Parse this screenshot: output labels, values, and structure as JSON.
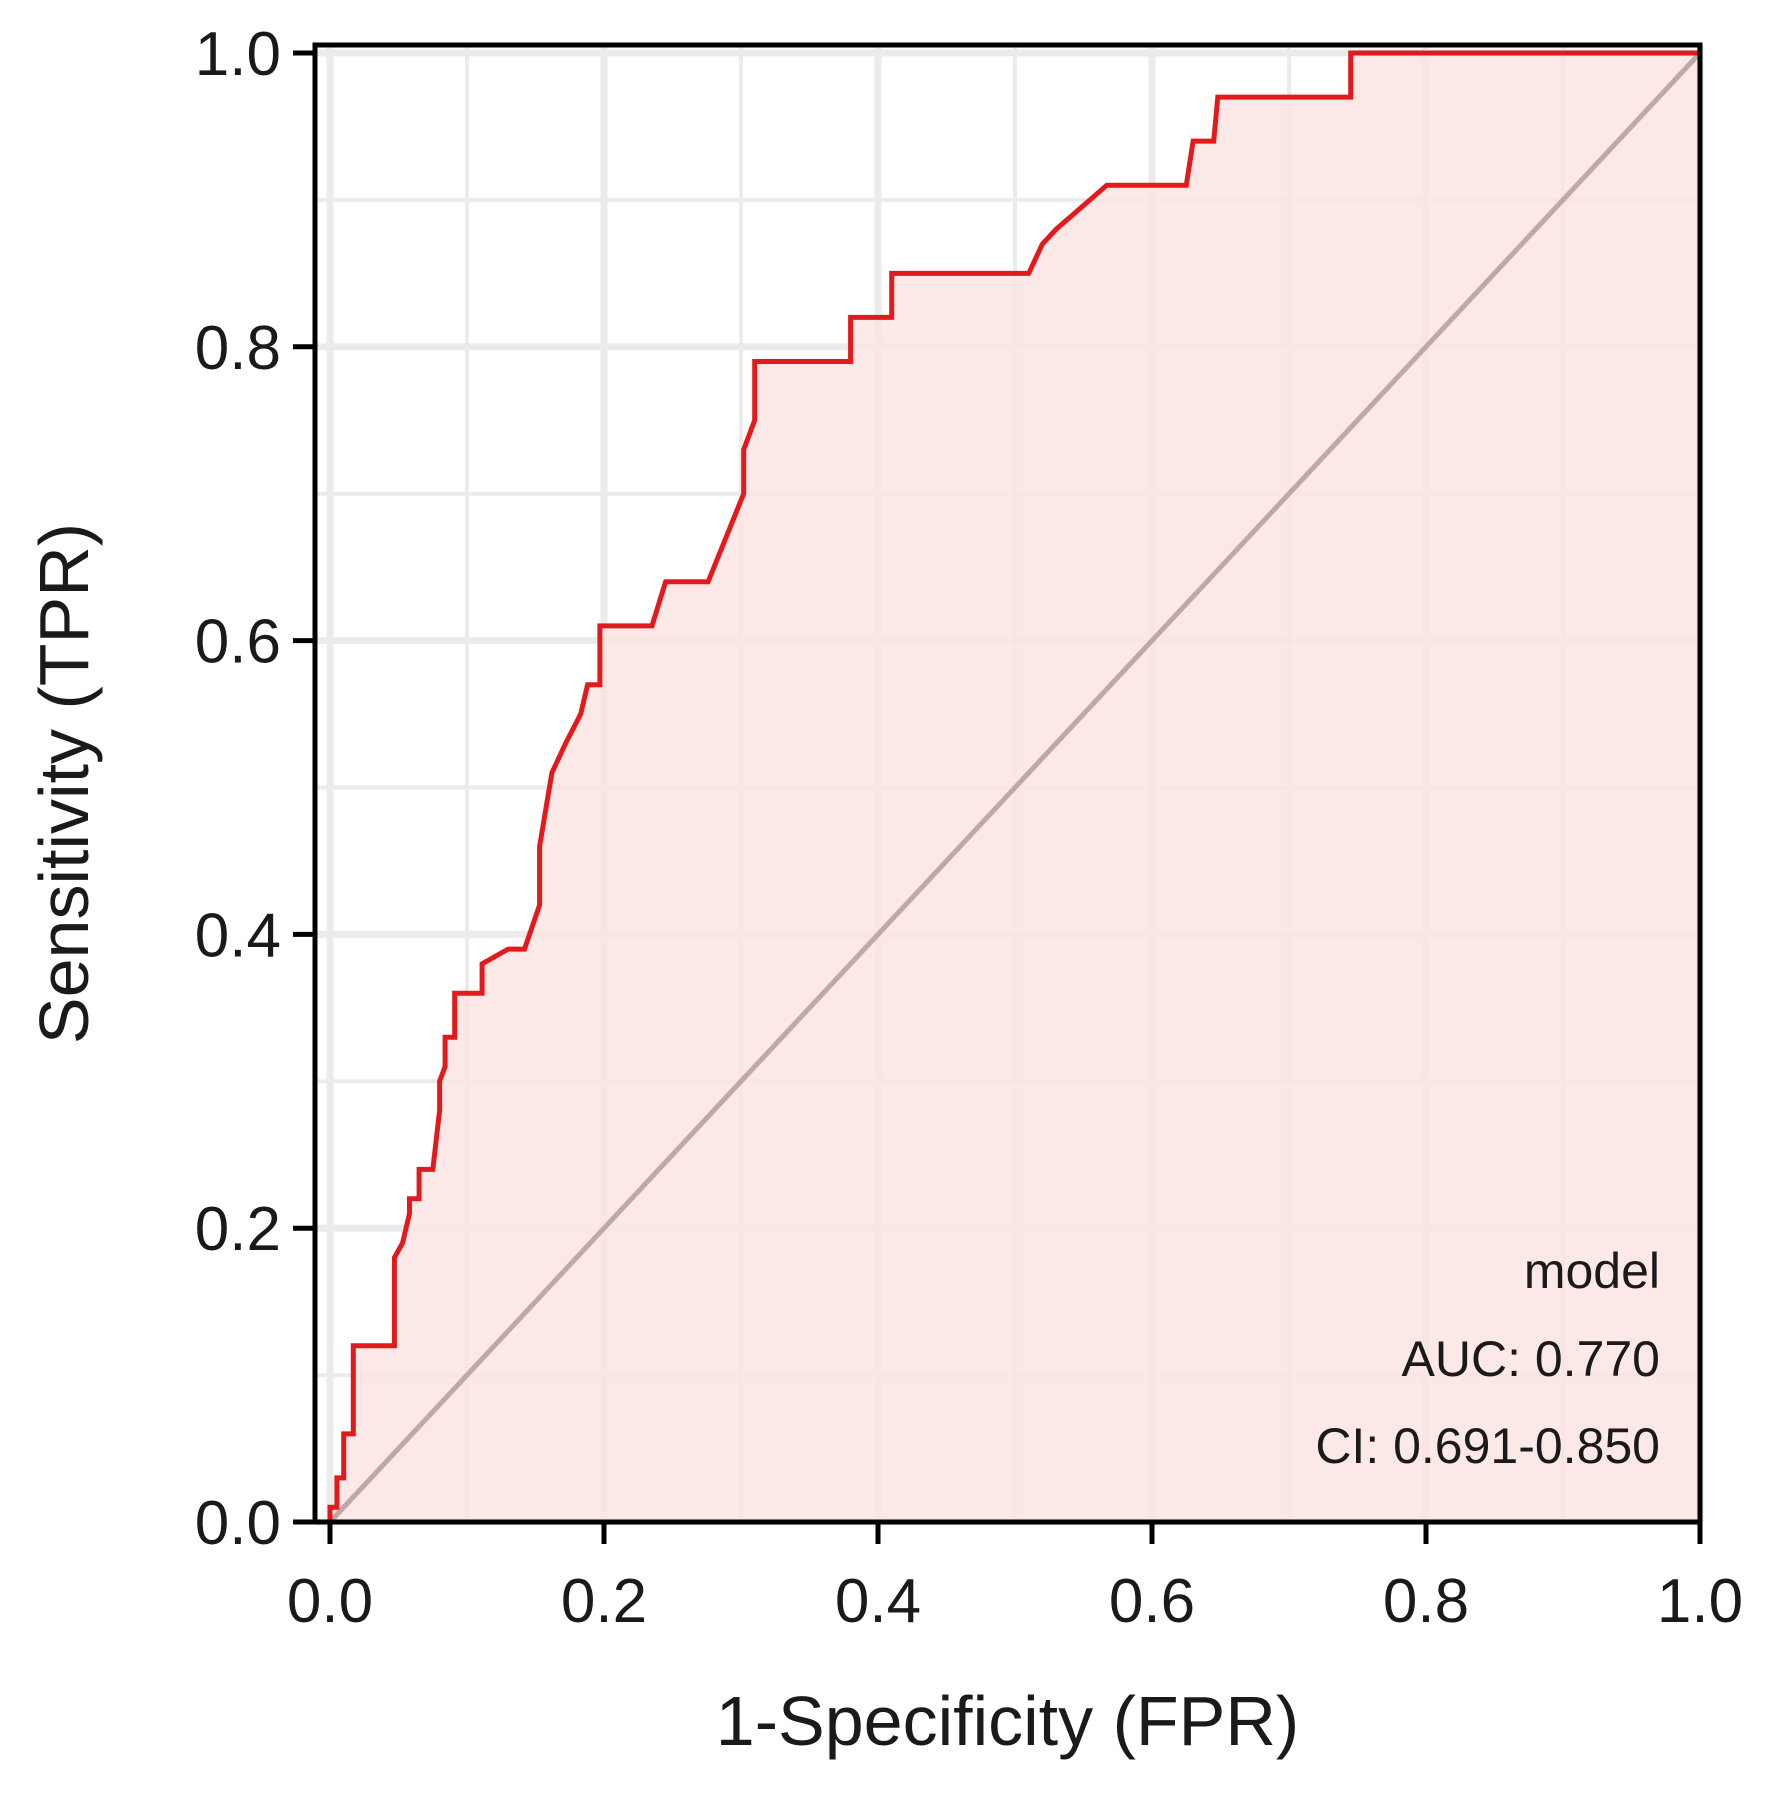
{
  "chart_data": {
    "type": "line",
    "xlabel": "1-Specificity (FPR)",
    "ylabel": "Sensitivity (TPR)",
    "xlim": [
      0,
      1
    ],
    "ylim": [
      0,
      1
    ],
    "x_ticks": [
      "0.0",
      "0.2",
      "0.4",
      "0.6",
      "0.8",
      "1.0"
    ],
    "y_ticks": [
      "0.0",
      "0.2",
      "0.4",
      "0.6",
      "0.8",
      "1.0"
    ],
    "grid": true,
    "legend_position": "bottom-right",
    "annotation": {
      "name": "model",
      "auc": "AUC: 0.770",
      "ci": "CI: 0.691-0.850"
    },
    "colors": {
      "roc_line": "#e31a1c",
      "roc_fill": "#fde4e4",
      "diagonal": "#c0a8a8",
      "grid": "#ebebeb",
      "frame": "#000000"
    },
    "series": [
      {
        "x": [
          0.0,
          0.0,
          0.005,
          0.005,
          0.01,
          0.01,
          0.017,
          0.017,
          0.047,
          0.047,
          0.053,
          0.058,
          0.058,
          0.065,
          0.065,
          0.075,
          0.08,
          0.08,
          0.084,
          0.084,
          0.091,
          0.091,
          0.111,
          0.111,
          0.13,
          0.142,
          0.153,
          0.153,
          0.162,
          0.172,
          0.183,
          0.188,
          0.197,
          0.197,
          0.208,
          0.235,
          0.245,
          0.276,
          0.302,
          0.302,
          0.31,
          0.31,
          0.38,
          0.38,
          0.41,
          0.41,
          0.51,
          0.52,
          0.53,
          0.567,
          0.6,
          0.625,
          0.63,
          0.645,
          0.648,
          0.675,
          0.745,
          0.745,
          1.0
        ],
        "y": [
          0.0,
          0.01,
          0.01,
          0.03,
          0.03,
          0.06,
          0.06,
          0.12,
          0.12,
          0.18,
          0.19,
          0.21,
          0.22,
          0.22,
          0.24,
          0.24,
          0.28,
          0.3,
          0.31,
          0.33,
          0.33,
          0.36,
          0.36,
          0.38,
          0.39,
          0.39,
          0.42,
          0.46,
          0.51,
          0.53,
          0.55,
          0.57,
          0.57,
          0.61,
          0.61,
          0.61,
          0.64,
          0.64,
          0.7,
          0.73,
          0.75,
          0.79,
          0.79,
          0.82,
          0.82,
          0.85,
          0.85,
          0.87,
          0.88,
          0.91,
          0.91,
          0.91,
          0.94,
          0.94,
          0.97,
          0.97,
          0.97,
          1.0,
          1.0
        ]
      }
    ]
  }
}
